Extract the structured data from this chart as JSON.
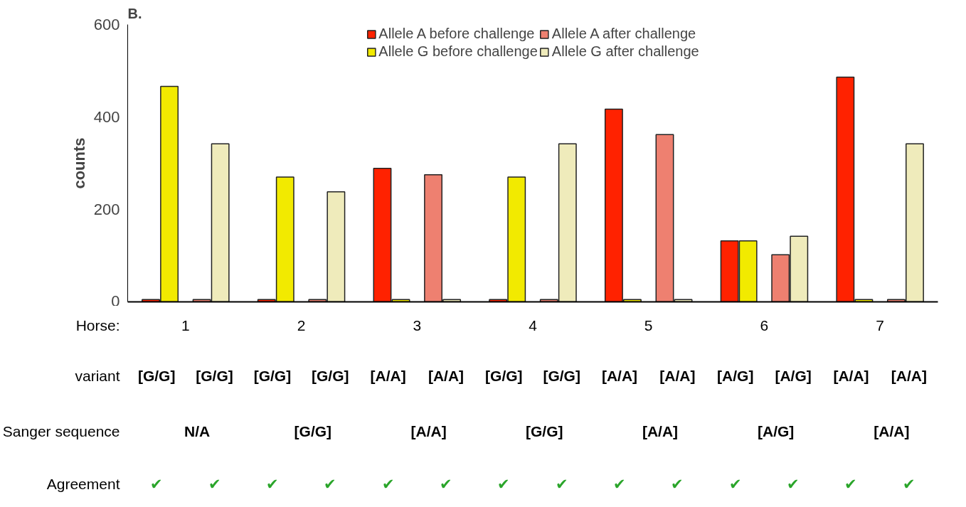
{
  "chart_data": {
    "type": "bar",
    "title": "B.",
    "ylabel": "counts",
    "categories": [
      "1",
      "2",
      "3",
      "4",
      "5",
      "6",
      "7"
    ],
    "series": [
      {
        "name": "Allele A before challenge",
        "color": "#ff2200",
        "values": [
          5,
          5,
          289,
          5,
          417,
          132,
          486
        ]
      },
      {
        "name": "Allele G before challenge",
        "color": "#f2ea00",
        "values": [
          466,
          270,
          5,
          270,
          5,
          132,
          5
        ]
      },
      {
        "name": "Allele A after challenge",
        "color": "#ee8070",
        "values": [
          5,
          5,
          275,
          5,
          362,
          102,
          5
        ]
      },
      {
        "name": "Allele G after challenge",
        "color": "#efebbb",
        "values": [
          342,
          238,
          5,
          342,
          5,
          142,
          342
        ]
      }
    ],
    "ylim": [
      0,
      600
    ],
    "yticks": [
      0,
      200,
      400,
      600
    ],
    "grid": false,
    "legend": "top",
    "annotations": [
      "Horse:",
      "variant",
      "[G/G]",
      "[G/G]",
      "[G/G]",
      "[G/G]",
      "[A/A]",
      "[A/A]",
      "[G/G]",
      "[G/G]",
      "[A/A]",
      "[A/A]",
      "[A/G]",
      "[A/G]",
      "[A/A]",
      "[A/A]",
      "Sanger sequence",
      "N/A",
      "[G/G]",
      "[A/A]",
      "[G/G]",
      "[A/A]",
      "[A/G]",
      "[A/A]",
      "Agreement",
      "✔",
      "✔",
      "✔",
      "✔",
      "✔",
      "✔",
      "✔",
      "✔",
      "✔",
      "✔",
      "✔",
      "✔",
      "✔",
      "✔"
    ]
  }
}
